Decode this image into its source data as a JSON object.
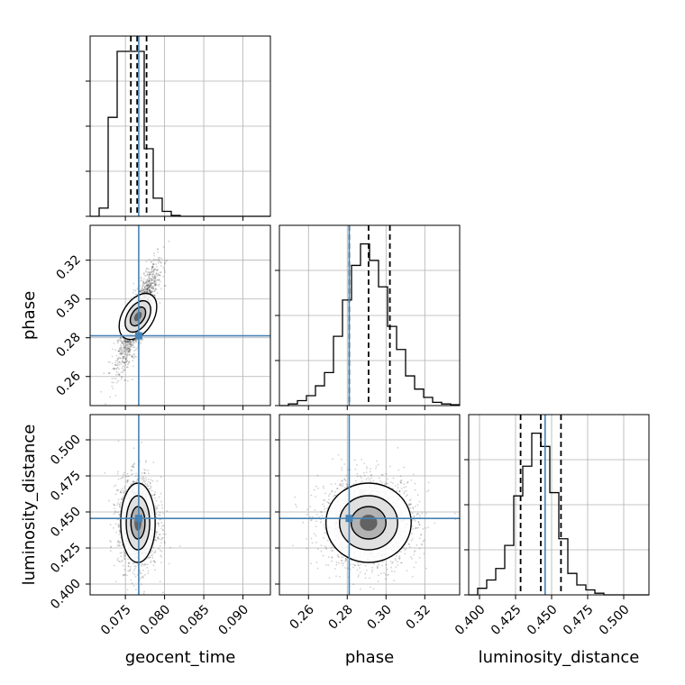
{
  "chart_data": {
    "type": "corner",
    "parameters": [
      {
        "name": "geocent_time",
        "range": [
          0.0705,
          0.0935
        ],
        "ticks": [
          0.075,
          0.08,
          0.085,
          0.09
        ],
        "tick_labels": [
          "0.075",
          "0.080",
          "0.085",
          "0.090"
        ],
        "truth": 0.0767,
        "quantiles": [
          0.0757,
          0.0765,
          0.0777
        ],
        "mean": 0.0766,
        "sd": 0.001
      },
      {
        "name": "phase",
        "range": [
          0.245,
          0.338
        ],
        "ticks": [
          0.26,
          0.28,
          0.3,
          0.32
        ],
        "tick_labels": [
          "0.26",
          "0.28",
          "0.30",
          "0.32"
        ],
        "truth": 0.281,
        "quantiles": [
          0.281,
          0.291,
          0.302
        ],
        "mean": 0.291,
        "sd": 0.01
      },
      {
        "name": "luminosity_distance",
        "range": [
          0.3925,
          0.5175
        ],
        "ticks": [
          0.4,
          0.425,
          0.45,
          0.475,
          0.5
        ],
        "tick_labels": [
          "0.400",
          "0.425",
          "0.450",
          "0.475",
          "0.500"
        ],
        "truth": 0.4455,
        "quantiles": [
          0.4285,
          0.4425,
          0.4565
        ],
        "mean": 0.4425,
        "sd": 0.0125
      }
    ],
    "correlations": {
      "0-1": 0.85,
      "0-2": -0.03,
      "1-2": 0.02
    },
    "hist1d": {
      "geocent_time": [
        0.0,
        0.05,
        0.6,
        1.0,
        1.0,
        1.0,
        0.41,
        0.11,
        0.03,
        0.005,
        0,
        0,
        0,
        0,
        0,
        0,
        0,
        0,
        0,
        0
      ],
      "phase": [
        0.0,
        0.01,
        0.03,
        0.06,
        0.12,
        0.2,
        0.42,
        0.64,
        0.85,
        0.98,
        0.88,
        0.72,
        0.48,
        0.34,
        0.18,
        0.1,
        0.05,
        0.02,
        0.01,
        0.005
      ],
      "luminosity_distance": [
        0.0,
        0.04,
        0.09,
        0.16,
        0.3,
        0.6,
        0.78,
        0.98,
        0.9,
        0.62,
        0.34,
        0.13,
        0.06,
        0.03,
        0.01,
        0,
        0,
        0,
        0,
        0
      ]
    },
    "truth_color": "#4682b4",
    "quantile_style": "dashed",
    "grid": true
  }
}
